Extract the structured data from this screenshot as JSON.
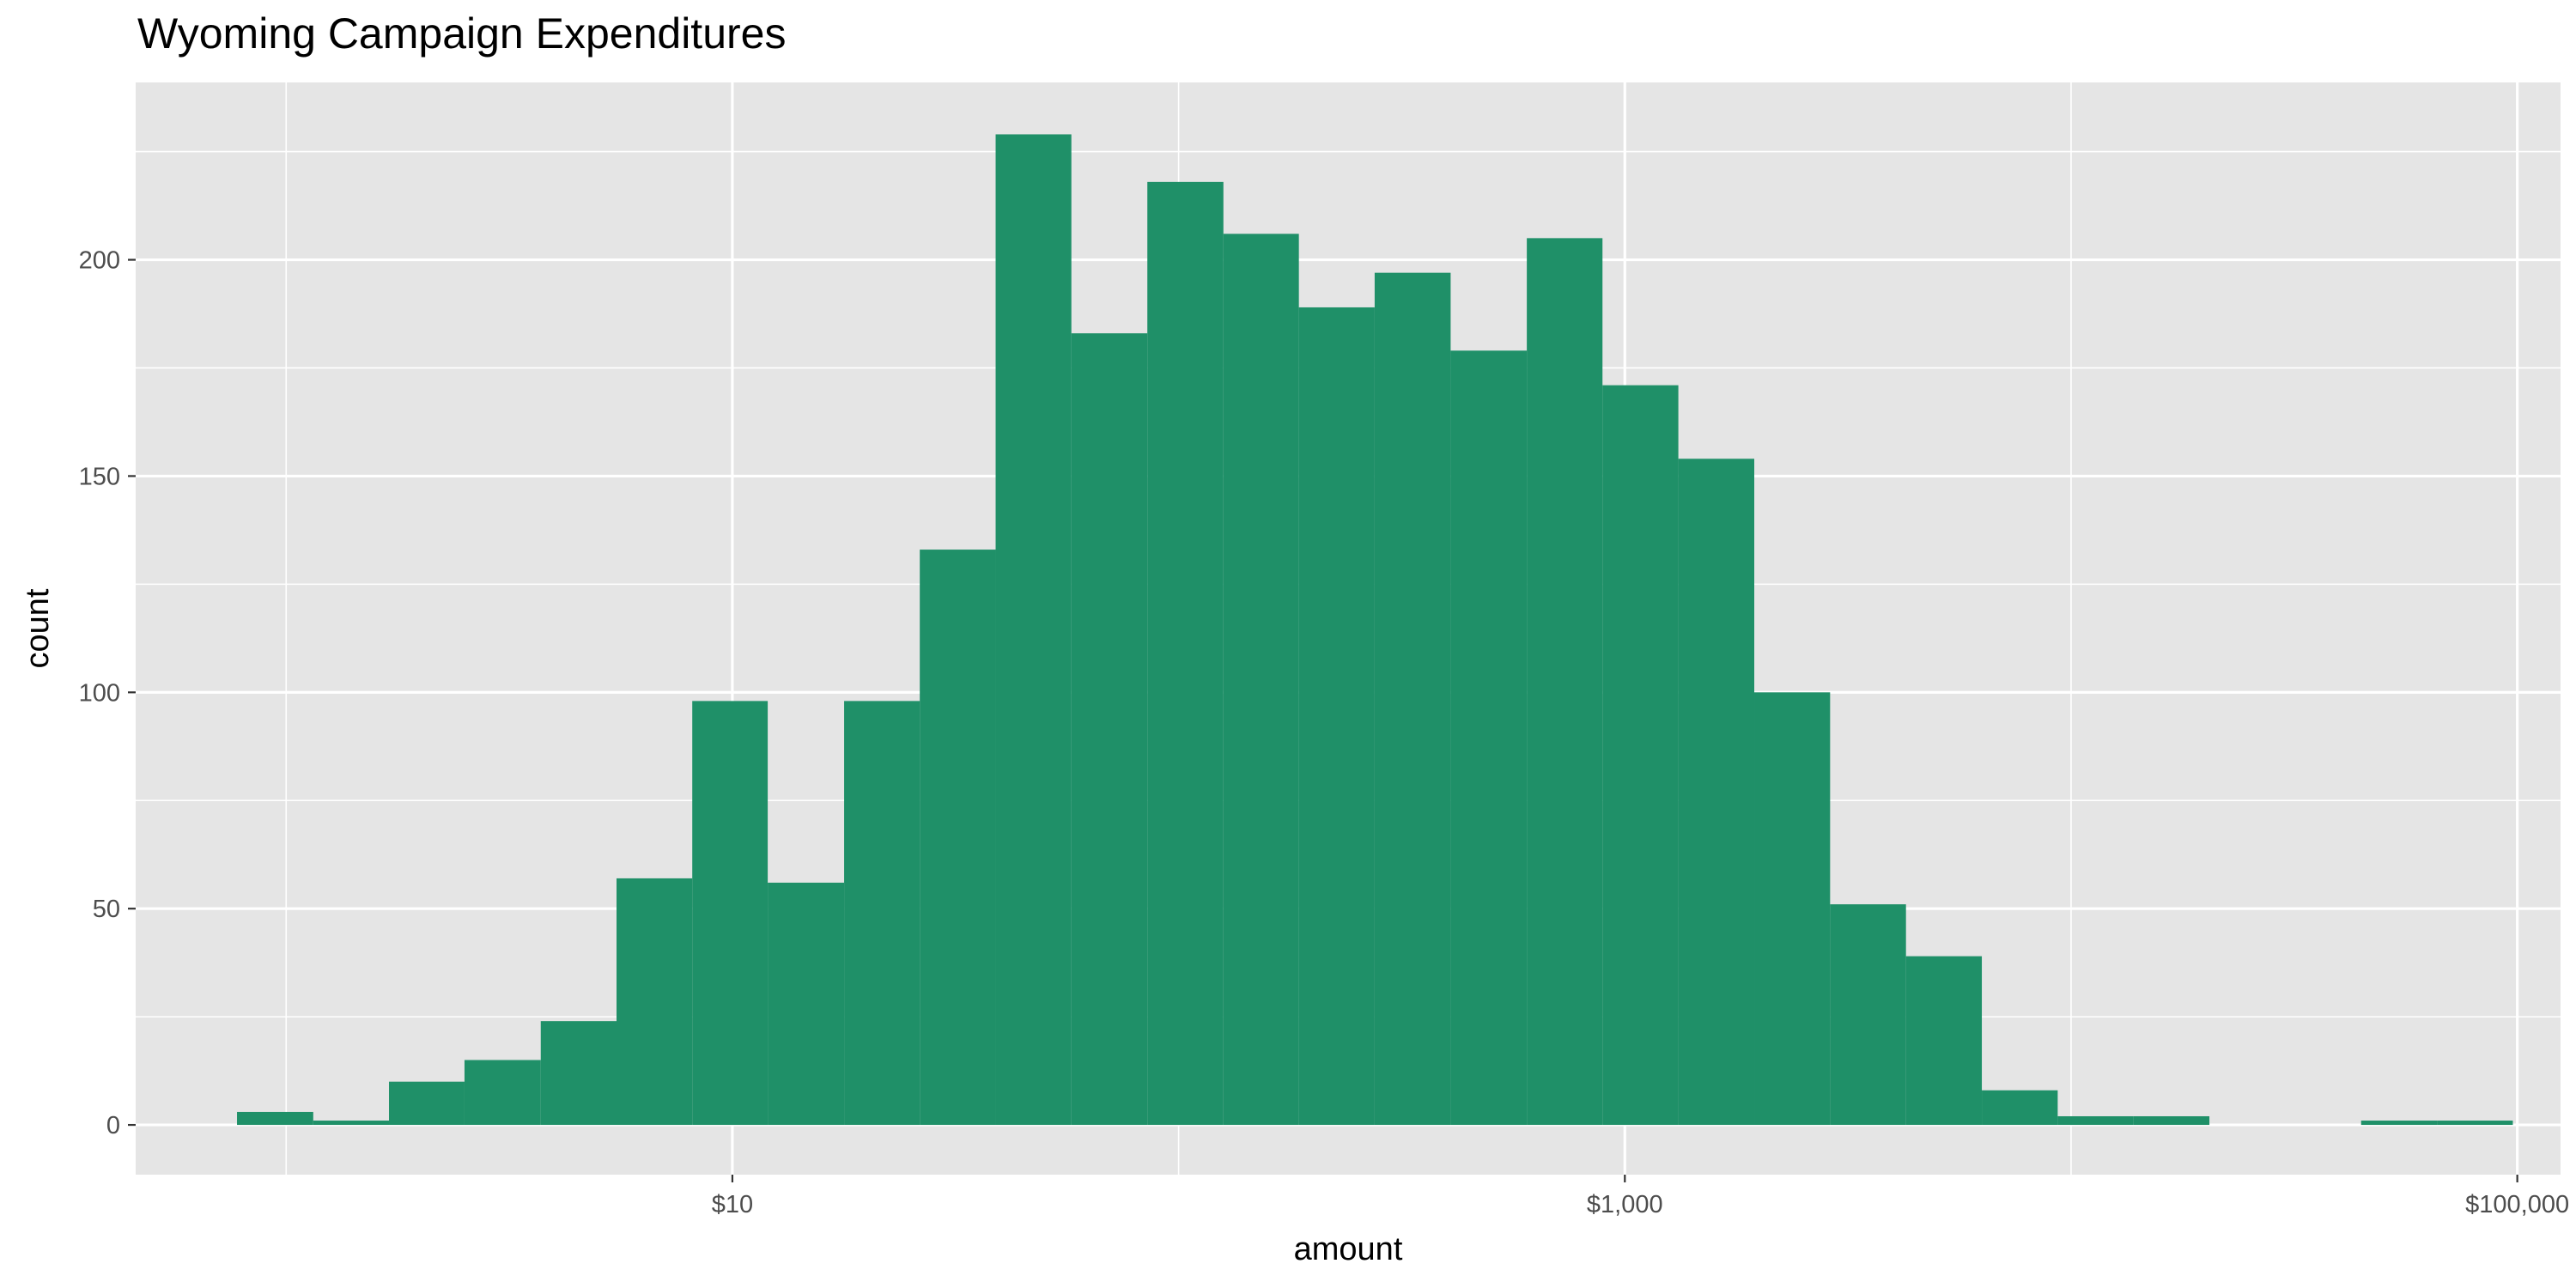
{
  "chart_data": {
    "type": "bar",
    "title": "Wyoming Campaign Expenditures",
    "xlabel": "amount",
    "ylabel": "count",
    "x_scale": "log10",
    "x_ticks": [
      {
        "value": 10,
        "label": "$10"
      },
      {
        "value": 1000,
        "label": "$1,000"
      },
      {
        "value": 100000,
        "label": "$100,000"
      }
    ],
    "y_ticks": [
      0,
      50,
      100,
      150,
      200
    ],
    "xlim": [
      0.46,
      125000
    ],
    "ylim": [
      -11.5,
      241
    ],
    "grid": true,
    "bar_color": "#1f9068",
    "panel_color": "#e5e5e5",
    "bins": [
      {
        "x0": 0.776,
        "x1": 1.15,
        "count": 3
      },
      {
        "x0": 1.15,
        "x1": 1.7,
        "count": 1
      },
      {
        "x0": 1.7,
        "x1": 2.51,
        "count": 10
      },
      {
        "x0": 2.51,
        "x1": 3.72,
        "count": 15
      },
      {
        "x0": 3.72,
        "x1": 5.5,
        "count": 24
      },
      {
        "x0": 5.5,
        "x1": 8.13,
        "count": 57
      },
      {
        "x0": 8.13,
        "x1": 12.0,
        "count": 98
      },
      {
        "x0": 12.0,
        "x1": 17.8,
        "count": 56
      },
      {
        "x0": 17.8,
        "x1": 26.3,
        "count": 98
      },
      {
        "x0": 26.3,
        "x1": 38.9,
        "count": 133
      },
      {
        "x0": 38.9,
        "x1": 57.5,
        "count": 229
      },
      {
        "x0": 57.5,
        "x1": 85.1,
        "count": 183
      },
      {
        "x0": 85.1,
        "x1": 126,
        "count": 218
      },
      {
        "x0": 126,
        "x1": 186,
        "count": 206
      },
      {
        "x0": 186,
        "x1": 275,
        "count": 189
      },
      {
        "x0": 275,
        "x1": 407,
        "count": 197
      },
      {
        "x0": 407,
        "x1": 603,
        "count": 179
      },
      {
        "x0": 603,
        "x1": 891,
        "count": 205
      },
      {
        "x0": 891,
        "x1": 1318,
        "count": 171
      },
      {
        "x0": 1318,
        "x1": 1950,
        "count": 154
      },
      {
        "x0": 1950,
        "x1": 2884,
        "count": 100
      },
      {
        "x0": 2884,
        "x1": 4266,
        "count": 51
      },
      {
        "x0": 4266,
        "x1": 6310,
        "count": 39
      },
      {
        "x0": 6310,
        "x1": 9333,
        "count": 8
      },
      {
        "x0": 9333,
        "x1": 13804,
        "count": 2
      },
      {
        "x0": 13804,
        "x1": 20417,
        "count": 2
      },
      {
        "x0": 20417,
        "x1": 30200,
        "count": 0
      },
      {
        "x0": 30200,
        "x1": 44668,
        "count": 0
      },
      {
        "x0": 44668,
        "x1": 66069,
        "count": 1
      },
      {
        "x0": 66069,
        "x1": 97724,
        "count": 1
      }
    ]
  }
}
